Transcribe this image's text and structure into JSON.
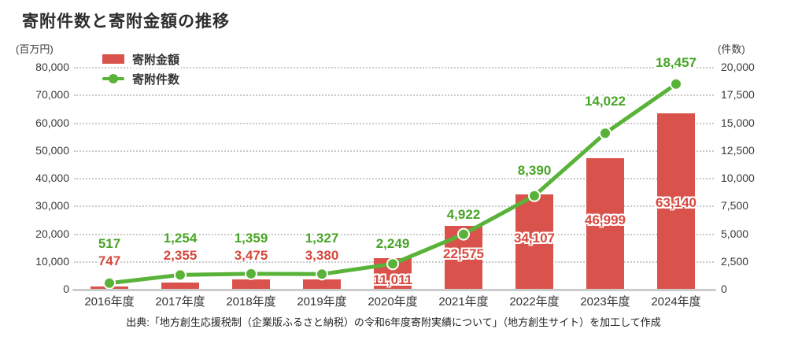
{
  "title": "寄附件数と寄附金額の推移",
  "source": "出典:「地方創生応援税制（企業版ふるさと納税）の令和6年度寄附実績について」（地方創生サイト）を加工して作成",
  "colors": {
    "bar_red": "#d9534c",
    "label_red": "#d6493f",
    "line_green": "#58b338",
    "label_green": "#47a526",
    "grid": "#c9c9c9",
    "axis_text": "#3a3a3a"
  },
  "legend": {
    "items": [
      {
        "label": "寄附金額",
        "type": "bar"
      },
      {
        "label": "寄附件数",
        "type": "line"
      }
    ]
  },
  "left_axis": {
    "unit": "(百万円)",
    "ticks": [
      "80,000",
      "70,000",
      "60,000",
      "50,000",
      "40,000",
      "30,000",
      "20,000",
      "10,000",
      "0"
    ]
  },
  "right_axis": {
    "unit": "(件数)",
    "ticks": [
      "20,000",
      "17,500",
      "15,000",
      "12,500",
      "10,000",
      "7,500",
      "5,000",
      "2,500",
      "0"
    ]
  },
  "chart_data": {
    "type": "bar+line",
    "title": "寄附件数と寄附金額の推移",
    "categories": [
      "2016年度",
      "2017年度",
      "2018年度",
      "2019年度",
      "2020年度",
      "2021年度",
      "2022年度",
      "2023年度",
      "2024年度"
    ],
    "series": [
      {
        "name": "寄附金額",
        "type": "bar",
        "axis": "left",
        "unit": "百万円",
        "values": [
          747,
          2355,
          3475,
          3380,
          11011,
          22575,
          34107,
          46999,
          63140
        ]
      },
      {
        "name": "寄附件数",
        "type": "line",
        "axis": "right",
        "unit": "件",
        "values": [
          517,
          1254,
          1359,
          1327,
          2249,
          4922,
          8390,
          14022,
          18457
        ]
      }
    ],
    "left_ylim": [
      0,
      80000
    ],
    "right_ylim": [
      0,
      20000
    ],
    "grid": true,
    "legend_position": "top-left"
  }
}
